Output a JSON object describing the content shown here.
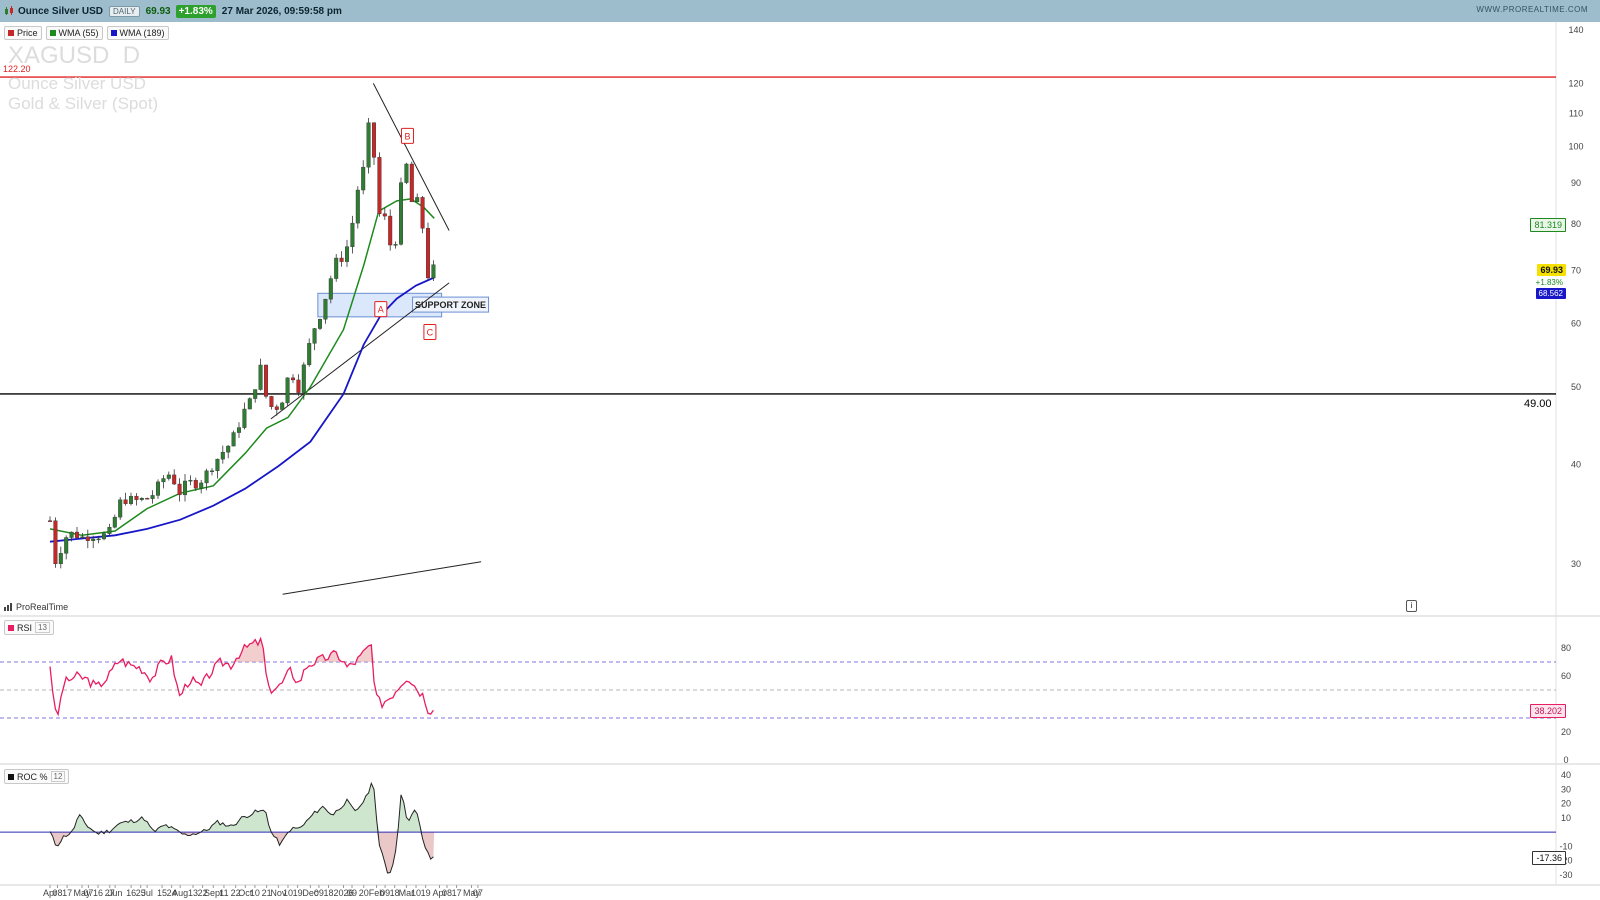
{
  "header": {
    "instrument": "Ounce Silver USD",
    "period": "DAILY",
    "last": "69.93",
    "change": "+1.83%",
    "timestamp": "27 Mar 2026, 09:59:58 pm",
    "brand": "WWW.PROREALTIME.COM"
  },
  "watermark": {
    "ticker": "XAGUSD  D",
    "name": "Ounce Silver USD",
    "category": "Gold & Silver (Spot)"
  },
  "price_legend": [
    {
      "label": "Price",
      "color": "#c62828"
    },
    {
      "label": "WMA (55)",
      "color": "#1e8a1e"
    },
    {
      "label": "WMA (189)",
      "color": "#1717c8"
    }
  ],
  "rsi_legend": {
    "label": "RSI",
    "param": "13",
    "color": "#e81e63"
  },
  "roc_legend": {
    "label": "ROC %",
    "param": "12",
    "color": "#111111"
  },
  "source_label": "ProRealTime",
  "annotations": {
    "support_zone": "SUPPORT ZONE",
    "wave_a": "A",
    "wave_b": "B",
    "wave_c": "C",
    "resistance_level": "122.20",
    "support_level": "49.00",
    "event_marker": "i"
  },
  "value_tags": {
    "wma55": "81.319",
    "price": "69.93",
    "price_change": "+1.83%",
    "wma189": "68.562",
    "rsi": "38.202",
    "roc": "-17.36"
  },
  "chart_data": [
    {
      "type": "candlestick",
      "panel": "price",
      "scale": "log",
      "ylim": [
        28,
        142
      ],
      "y_ticks": [
        "140",
        "120",
        "110",
        "100",
        "90",
        "80",
        "70",
        "60",
        "50",
        "40",
        "30"
      ],
      "x_ticks": [
        "Apr",
        "08",
        "17",
        "May",
        "07",
        "16",
        "27",
        "Jun",
        "16",
        "25",
        "Jul",
        "15",
        "24",
        "Aug",
        "13",
        "22",
        "Sept",
        "11",
        "22",
        "Oct",
        "10",
        "21",
        "Nov",
        "10",
        "19",
        "Dec",
        "09",
        "18",
        "2026",
        "09",
        "20",
        "Feb",
        "09",
        "18",
        "Mar",
        "10",
        "19",
        "Apr",
        "08",
        "17",
        "May",
        "07"
      ],
      "series": [
        {
          "name": "Price",
          "points": [
            [
              "2025-04-01",
              34.0
            ],
            [
              "2025-04-04",
              31.2
            ],
            [
              "2025-04-07",
              29.8
            ],
            [
              "2025-04-10",
              31.0
            ],
            [
              "2025-04-15",
              32.4
            ],
            [
              "2025-04-22",
              32.8
            ],
            [
              "2025-05-01",
              32.4
            ],
            [
              "2025-05-12",
              32.6
            ],
            [
              "2025-05-20",
              32.5
            ],
            [
              "2025-05-28",
              33.0
            ],
            [
              "2025-06-05",
              35.8
            ],
            [
              "2025-06-12",
              36.2
            ],
            [
              "2025-06-20",
              36.0
            ],
            [
              "2025-06-30",
              36.2
            ],
            [
              "2025-07-08",
              36.8
            ],
            [
              "2025-07-14",
              38.2
            ],
            [
              "2025-07-23",
              39.0
            ],
            [
              "2025-07-31",
              36.8
            ],
            [
              "2025-08-08",
              38.0
            ],
            [
              "2025-08-18",
              37.8
            ],
            [
              "2025-08-29",
              39.5
            ],
            [
              "2025-09-08",
              41.2
            ],
            [
              "2025-09-15",
              42.2
            ],
            [
              "2025-09-22",
              43.8
            ],
            [
              "2025-10-01",
              47.0
            ],
            [
              "2025-10-08",
              48.5
            ],
            [
              "2025-10-14",
              53.0
            ],
            [
              "2025-10-17",
              52.5
            ],
            [
              "2025-10-21",
              48.0
            ],
            [
              "2025-10-28",
              46.8
            ],
            [
              "2025-11-04",
              47.9
            ],
            [
              "2025-11-12",
              52.5
            ],
            [
              "2025-11-20",
              49.8
            ],
            [
              "2025-11-28",
              55.0
            ],
            [
              "2025-12-03",
              58.6
            ],
            [
              "2025-12-10",
              61.5
            ],
            [
              "2025-12-17",
              66.0
            ],
            [
              "2025-12-24",
              71.5
            ],
            [
              "2026-01-02",
              73.0
            ],
            [
              "2026-01-08",
              78.0
            ],
            [
              "2026-01-14",
              88.0
            ],
            [
              "2026-01-20",
              94.0
            ],
            [
              "2026-01-23",
              101.0
            ],
            [
              "2026-01-26",
              110.0
            ],
            [
              "2026-01-29",
              118.0
            ],
            [
              "2026-01-30",
              84.0
            ],
            [
              "2026-02-03",
              88.0
            ],
            [
              "2026-02-05",
              71.0
            ],
            [
              "2026-02-09",
              82.0
            ],
            [
              "2026-02-12",
              76.0
            ],
            [
              "2026-02-18",
              74.0
            ],
            [
              "2026-02-23",
              88.0
            ],
            [
              "2026-02-27",
              92.0
            ],
            [
              "2026-03-02",
              96.0
            ],
            [
              "2026-03-05",
              85.0
            ],
            [
              "2026-03-10",
              86.0
            ],
            [
              "2026-03-13",
              84.0
            ],
            [
              "2026-03-17",
              78.0
            ],
            [
              "2026-03-20",
              70.0
            ],
            [
              "2026-03-23",
              67.5
            ],
            [
              "2026-03-25",
              71.0
            ],
            [
              "2026-03-27",
              69.93
            ]
          ]
        },
        {
          "name": "WMA (55)",
          "points": [
            [
              "2025-04-01",
              33.2
            ],
            [
              "2025-05-01",
              32.6
            ],
            [
              "2025-06-01",
              33.0
            ],
            [
              "2025-07-01",
              35.2
            ],
            [
              "2025-08-01",
              36.8
            ],
            [
              "2025-09-01",
              37.6
            ],
            [
              "2025-10-01",
              41.3
            ],
            [
              "2025-10-21",
              44.4
            ],
            [
              "2025-11-10",
              45.8
            ],
            [
              "2025-12-01",
              50.0
            ],
            [
              "2026-01-01",
              59.0
            ],
            [
              "2026-01-20",
              71.0
            ],
            [
              "2026-02-03",
              83.0
            ],
            [
              "2026-02-20",
              85.5
            ],
            [
              "2026-03-05",
              86.0
            ],
            [
              "2026-03-17",
              84.0
            ],
            [
              "2026-03-27",
              81.319
            ]
          ]
        },
        {
          "name": "WMA (189)",
          "points": [
            [
              "2025-04-01",
              32.0
            ],
            [
              "2025-05-01",
              32.3
            ],
            [
              "2025-06-01",
              32.6
            ],
            [
              "2025-07-01",
              33.2
            ],
            [
              "2025-08-01",
              34.1
            ],
            [
              "2025-09-01",
              35.5
            ],
            [
              "2025-10-01",
              37.3
            ],
            [
              "2025-11-01",
              39.8
            ],
            [
              "2025-12-01",
              42.7
            ],
            [
              "2026-01-01",
              49.0
            ],
            [
              "2026-01-20",
              56.5
            ],
            [
              "2026-02-05",
              61.5
            ],
            [
              "2026-02-20",
              64.5
            ],
            [
              "2026-03-10",
              67.0
            ],
            [
              "2026-03-27",
              68.562
            ]
          ]
        }
      ],
      "levels": [
        {
          "label": "122.20",
          "value": 122.2,
          "color": "#e02020"
        },
        {
          "label": "49.00",
          "value": 49.0,
          "color": "#000000"
        }
      ],
      "trendlines": [
        {
          "from": [
            "2026-01-29",
            120.0
          ],
          "to": [
            "2026-04-10",
            78.5
          ]
        },
        {
          "from": [
            "2025-10-25",
            45.6
          ],
          "to": [
            "2026-04-10",
            67.5
          ]
        },
        {
          "from": [
            "2025-11-05",
            27.5
          ],
          "to": [
            "2026-05-10",
            30.2
          ]
        }
      ],
      "zone": {
        "label": "SUPPORT ZONE",
        "from": "2025-12-08",
        "to": "2026-04-03",
        "low": 61.2,
        "high": 65.5
      },
      "wave_labels": [
        {
          "label": "A",
          "date": "2026-02-05",
          "value": 62.5
        },
        {
          "label": "B",
          "date": "2026-03-02",
          "value": 103.0
        },
        {
          "label": "C",
          "date": "2026-03-23",
          "value": 58.5
        }
      ]
    },
    {
      "type": "line",
      "panel": "RSI",
      "name": "RSI (13)",
      "ylim": [
        0,
        100
      ],
      "y_ticks": [
        "80",
        "60",
        "20",
        "0"
      ],
      "levels": [
        70,
        50,
        30
      ],
      "points": [
        [
          "2025-04-01",
          68
        ],
        [
          "2025-04-07",
          27
        ],
        [
          "2025-04-14",
          55
        ],
        [
          "2025-04-25",
          60
        ],
        [
          "2025-05-05",
          58
        ],
        [
          "2025-05-15",
          52
        ],
        [
          "2025-05-25",
          59
        ],
        [
          "2025-06-05",
          72
        ],
        [
          "2025-06-15",
          68
        ],
        [
          "2025-06-25",
          66
        ],
        [
          "2025-07-05",
          58
        ],
        [
          "2025-07-15",
          70
        ],
        [
          "2025-07-24",
          72
        ],
        [
          "2025-07-31",
          45
        ],
        [
          "2025-08-10",
          58
        ],
        [
          "2025-08-20",
          52
        ],
        [
          "2025-08-29",
          62
        ],
        [
          "2025-09-08",
          70
        ],
        [
          "2025-09-18",
          68
        ],
        [
          "2025-09-25",
          76
        ],
        [
          "2025-10-05",
          82
        ],
        [
          "2025-10-17",
          85
        ],
        [
          "2025-10-22",
          50
        ],
        [
          "2025-11-03",
          53
        ],
        [
          "2025-11-12",
          64
        ],
        [
          "2025-11-20",
          55
        ],
        [
          "2025-11-28",
          68
        ],
        [
          "2025-12-05",
          70
        ],
        [
          "2025-12-15",
          73
        ],
        [
          "2025-12-26",
          76
        ],
        [
          "2026-01-05",
          66
        ],
        [
          "2026-01-15",
          72
        ],
        [
          "2026-01-27",
          83
        ],
        [
          "2026-01-30",
          48
        ],
        [
          "2026-02-05",
          40
        ],
        [
          "2026-02-15",
          46
        ],
        [
          "2026-02-25",
          56
        ],
        [
          "2026-03-02",
          60
        ],
        [
          "2026-03-10",
          52
        ],
        [
          "2026-03-17",
          46
        ],
        [
          "2026-03-23",
          33
        ],
        [
          "2026-03-25",
          40
        ],
        [
          "2026-03-27",
          38.202
        ]
      ]
    },
    {
      "type": "area",
      "panel": "ROC",
      "name": "ROC % (12)",
      "ylim": [
        -35,
        45
      ],
      "y_ticks": [
        "40",
        "30",
        "20",
        "10",
        "-10",
        "-20",
        "-30"
      ],
      "baseline": 0,
      "points": [
        [
          "2025-04-01",
          0
        ],
        [
          "2025-04-07",
          -10
        ],
        [
          "2025-04-14",
          -3
        ],
        [
          "2025-04-22",
          0
        ],
        [
          "2025-04-28",
          12
        ],
        [
          "2025-05-05",
          5
        ],
        [
          "2025-05-15",
          -1
        ],
        [
          "2025-05-27",
          1
        ],
        [
          "2025-06-05",
          6
        ],
        [
          "2025-06-18",
          8
        ],
        [
          "2025-06-28",
          10
        ],
        [
          "2025-07-07",
          0
        ],
        [
          "2025-07-18",
          5
        ],
        [
          "2025-07-28",
          1
        ],
        [
          "2025-08-05",
          -2
        ],
        [
          "2025-08-15",
          -1
        ],
        [
          "2025-08-25",
          1
        ],
        [
          "2025-09-05",
          7
        ],
        [
          "2025-09-18",
          4
        ],
        [
          "2025-09-28",
          10
        ],
        [
          "2025-10-10",
          14
        ],
        [
          "2025-10-20",
          15
        ],
        [
          "2025-10-25",
          0
        ],
        [
          "2025-11-03",
          -9
        ],
        [
          "2025-11-12",
          2
        ],
        [
          "2025-11-22",
          3
        ],
        [
          "2025-12-03",
          12
        ],
        [
          "2025-12-12",
          18
        ],
        [
          "2025-12-22",
          12
        ],
        [
          "2026-01-04",
          22
        ],
        [
          "2026-01-12",
          14
        ],
        [
          "2026-01-22",
          24
        ],
        [
          "2026-01-29",
          37
        ],
        [
          "2026-02-03",
          -8
        ],
        [
          "2026-02-12",
          -30
        ],
        [
          "2026-02-16",
          -24
        ],
        [
          "2026-02-20",
          -8
        ],
        [
          "2026-02-24",
          28
        ],
        [
          "2026-03-02",
          8
        ],
        [
          "2026-03-10",
          16
        ],
        [
          "2026-03-16",
          -4
        ],
        [
          "2026-03-20",
          -14
        ],
        [
          "2026-03-24",
          -19
        ],
        [
          "2026-03-27",
          -17.36
        ]
      ]
    }
  ]
}
